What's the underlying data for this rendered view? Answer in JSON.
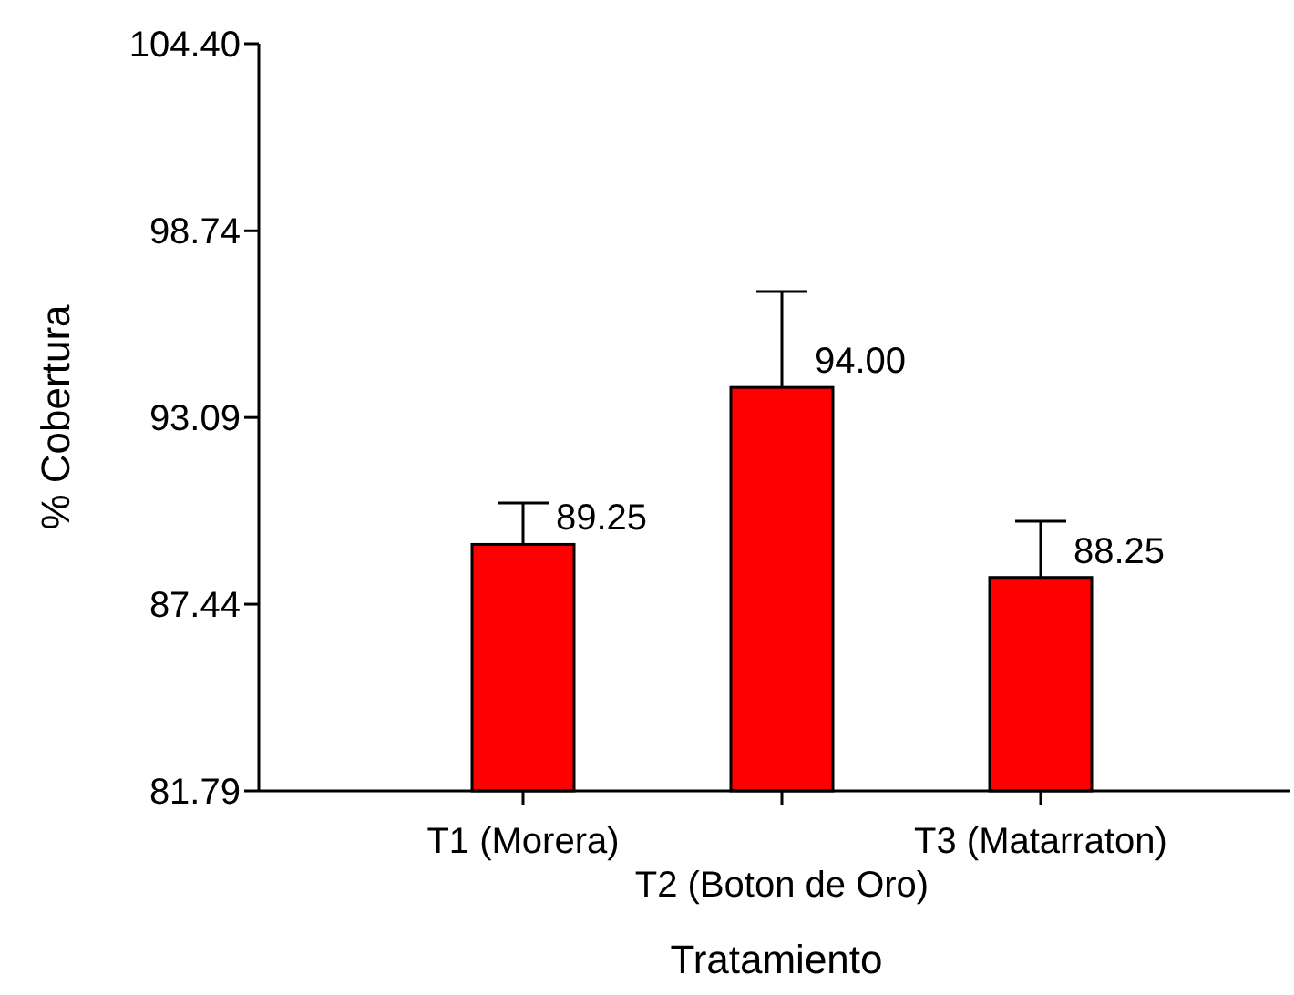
{
  "chart_data": {
    "type": "bar",
    "xlabel": "Tratamiento",
    "ylabel": "% Cobertura",
    "categories": [
      "T1 (Morera)",
      "T2 (Boton de Oro)",
      "T3 (Matarraton)"
    ],
    "values": [
      89.25,
      94.0,
      88.25
    ],
    "color": "#ff0000",
    "errors": [
      [
        89.25,
        90.5
      ],
      [
        94.0,
        96.9
      ],
      [
        88.25,
        89.95
      ]
    ],
    "value_labels": [
      "89.25",
      "94.00",
      "88.25"
    ],
    "ylim": [
      81.79,
      104.4
    ],
    "yticks": [
      {
        "value": 81.79,
        "label": "81.79"
      },
      {
        "value": 87.44,
        "label": "87.44"
      },
      {
        "value": 93.09,
        "label": "93.09"
      },
      {
        "value": 98.74,
        "label": "98.74"
      },
      {
        "value": 104.4,
        "label": "104.40"
      }
    ],
    "grid": false
  }
}
